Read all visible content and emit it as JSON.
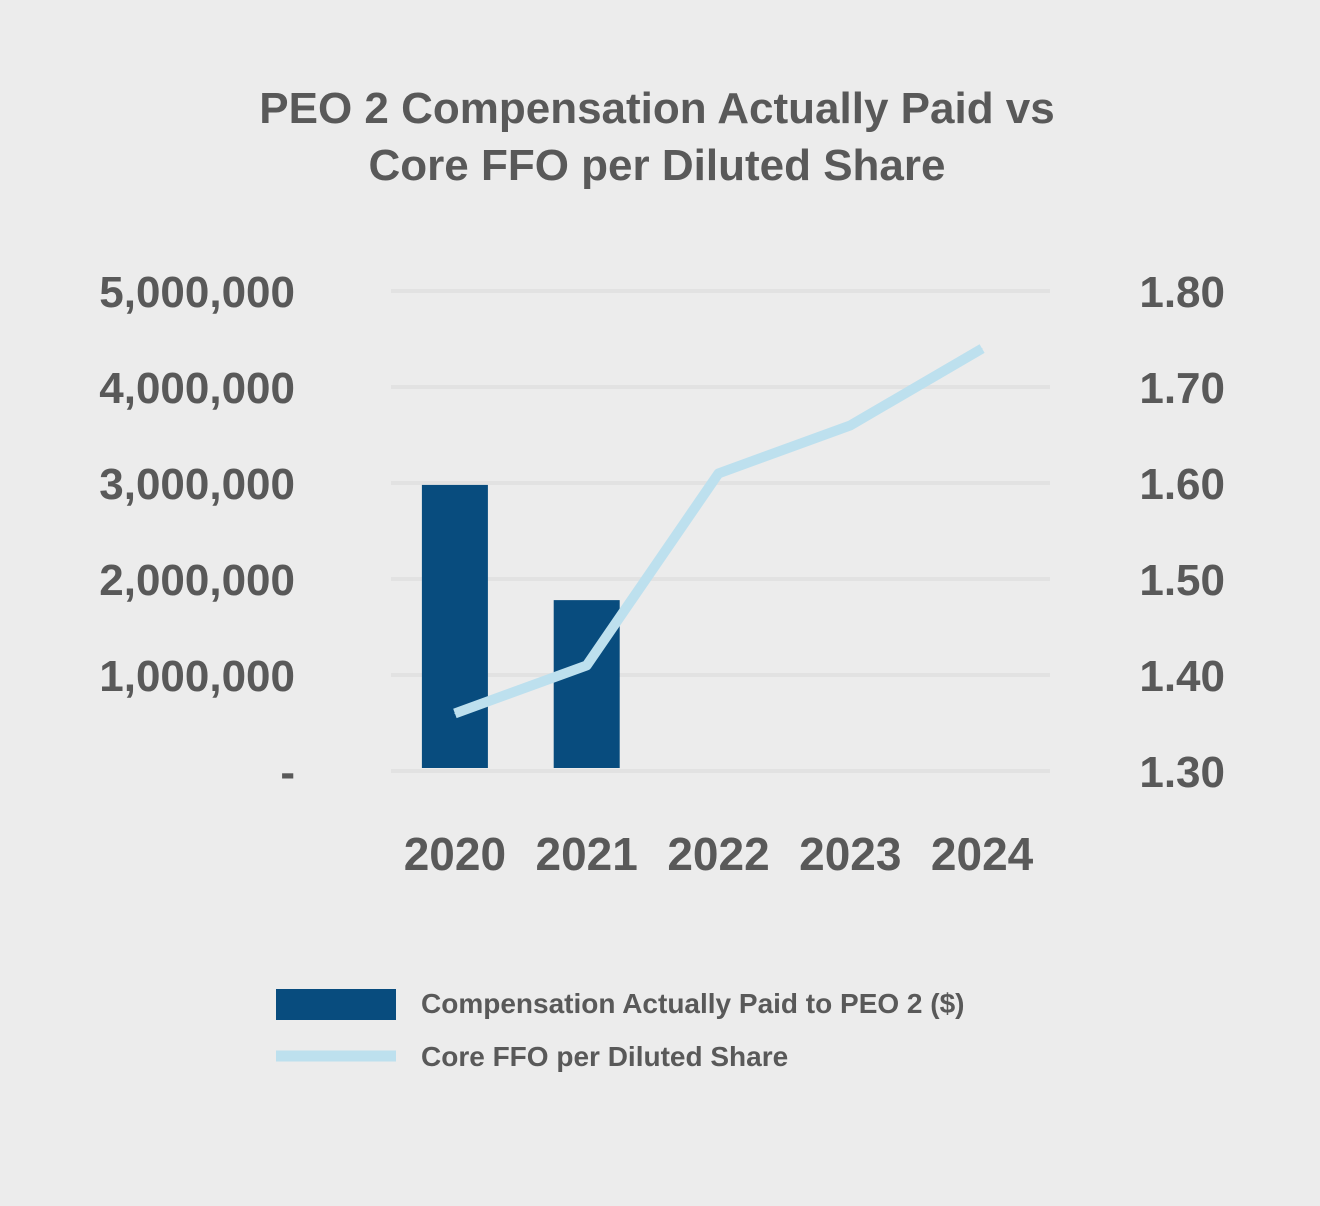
{
  "chart_data": {
    "type": "bar+line",
    "title_lines": [
      "PEO 2 Compensation Actually Paid vs",
      "Core FFO per Diluted Share"
    ],
    "categories": [
      "2020",
      "2021",
      "2022",
      "2023",
      "2024"
    ],
    "series": [
      {
        "name": "Compensation Actually Paid to PEO 2 ($)",
        "type": "bar",
        "axis": "left",
        "values": [
          2980000,
          1780000,
          null,
          null,
          null
        ]
      },
      {
        "name": "Core FFO per Diluted Share",
        "type": "line",
        "axis": "right",
        "values": [
          1.36,
          1.41,
          1.61,
          1.66,
          1.74
        ]
      }
    ],
    "left_axis": {
      "range": [
        0,
        5000000
      ],
      "tick_values": [
        0,
        1000000,
        2000000,
        3000000,
        4000000,
        5000000
      ],
      "tick_labels": [
        "-",
        "1,000,000",
        "2,000,000",
        "3,000,000",
        "4,000,000",
        "5,000,000"
      ]
    },
    "right_axis": {
      "range": [
        1.3,
        1.8
      ],
      "tick_values": [
        1.3,
        1.4,
        1.5,
        1.6,
        1.7,
        1.8
      ],
      "tick_labels": [
        "1.30",
        "1.40",
        "1.50",
        "1.60",
        "1.70",
        "1.80"
      ]
    },
    "grid": true,
    "legend_position": "bottom",
    "colors": {
      "bar": "#084c7e",
      "line": "#bde0ee",
      "text": "#595959",
      "grid": "#e2e2e2",
      "background": "#ececec"
    }
  }
}
